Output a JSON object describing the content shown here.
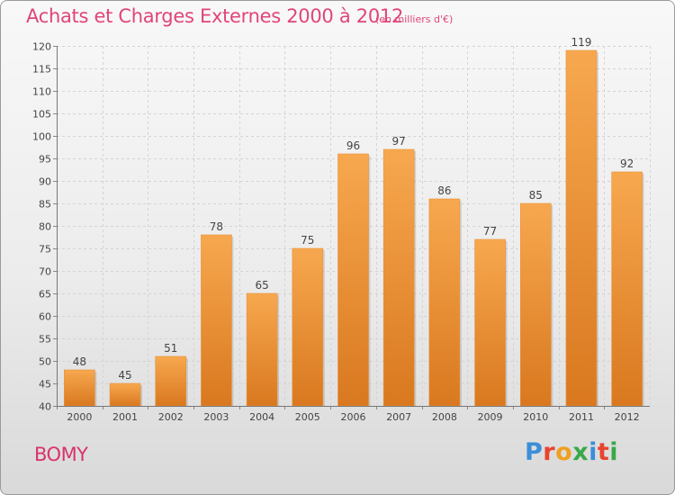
{
  "title": "Achats et Charges Externes 2000 à 2012",
  "subtitle": "(en milliers d'€)",
  "place": "BOMY",
  "logo": {
    "letters": [
      "P",
      "r",
      "o",
      "x",
      "i",
      "t",
      "i"
    ],
    "colors": [
      "#3a8fd8",
      "#e8442e",
      "#f0a020",
      "#3aa84a",
      "#3a8fd8",
      "#e8442e",
      "#3aa84a"
    ]
  },
  "colors": {
    "bar_top": "#f7a84f",
    "bar_bottom": "#d9781f",
    "title": "#e0457a"
  },
  "chart_data": {
    "type": "bar",
    "categories": [
      "2000",
      "2001",
      "2002",
      "2003",
      "2004",
      "2005",
      "2006",
      "2007",
      "2008",
      "2009",
      "2010",
      "2011",
      "2012"
    ],
    "values": [
      48,
      45,
      51,
      78,
      65,
      75,
      96,
      97,
      86,
      77,
      85,
      119,
      92
    ],
    "ylim": [
      40,
      120
    ],
    "yticks": [
      40,
      45,
      50,
      55,
      60,
      65,
      70,
      75,
      80,
      85,
      90,
      95,
      100,
      105,
      110,
      115,
      120
    ],
    "grid": true
  }
}
